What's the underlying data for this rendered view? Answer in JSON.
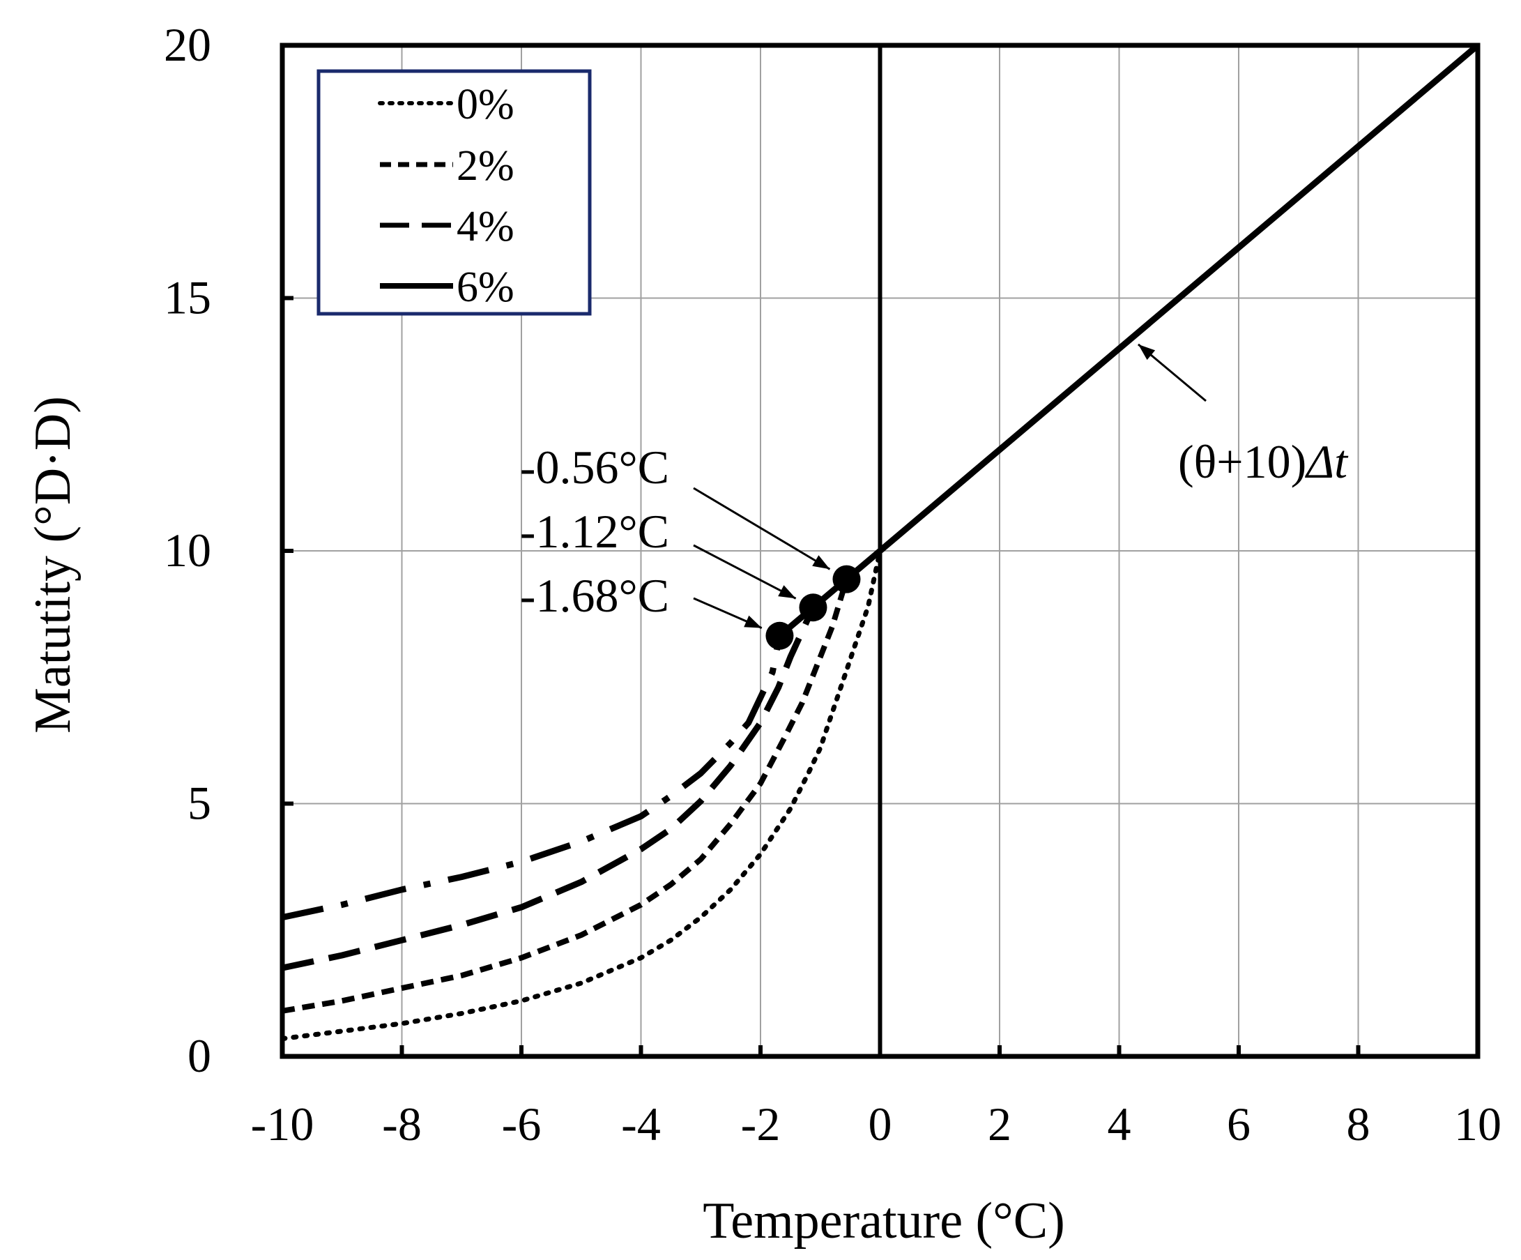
{
  "chart_data": {
    "type": "line",
    "title": "",
    "xlabel": "Temperature (°C)",
    "ylabel": "Matutity (°D·D)",
    "xlim": [
      -10,
      10
    ],
    "ylim": [
      0,
      20
    ],
    "xticks": [
      -10,
      -8,
      -6,
      -4,
      -2,
      0,
      2,
      4,
      6,
      8,
      10
    ],
    "xtick_labels": [
      "-10",
      "-8",
      "-6",
      "-4",
      "-2",
      "0",
      "2",
      "4",
      "6",
      "8",
      "10"
    ],
    "yticks": [
      0,
      5,
      10,
      15,
      20
    ],
    "ytick_labels": [
      "0",
      "5",
      "10",
      "15",
      "20"
    ],
    "grid": true,
    "legend_position": "top-left",
    "series": [
      {
        "name": "0%",
        "style": "dotted",
        "points": [
          [
            -10,
            0.35
          ],
          [
            -9,
            0.5
          ],
          [
            -8,
            0.65
          ],
          [
            -7,
            0.85
          ],
          [
            -6,
            1.1
          ],
          [
            -5,
            1.45
          ],
          [
            -4,
            1.95
          ],
          [
            -3.5,
            2.3
          ],
          [
            -3,
            2.75
          ],
          [
            -2.5,
            3.3
          ],
          [
            -2,
            4.0
          ],
          [
            -1.5,
            4.9
          ],
          [
            -1.2,
            5.6
          ],
          [
            -1.0,
            6.1
          ],
          [
            -0.8,
            6.8
          ],
          [
            -0.6,
            7.5
          ],
          [
            -0.4,
            8.2
          ],
          [
            -0.2,
            8.9
          ],
          [
            0,
            10
          ]
        ]
      },
      {
        "name": "2%",
        "style": "dashed",
        "points": [
          [
            -10,
            0.9
          ],
          [
            -9,
            1.1
          ],
          [
            -8,
            1.35
          ],
          [
            -7,
            1.6
          ],
          [
            -6,
            1.95
          ],
          [
            -5,
            2.4
          ],
          [
            -4,
            3.0
          ],
          [
            -3.5,
            3.4
          ],
          [
            -3,
            3.9
          ],
          [
            -2.5,
            4.6
          ],
          [
            -2,
            5.4
          ],
          [
            -1.6,
            6.3
          ],
          [
            -1.3,
            7.0
          ],
          [
            -1.1,
            7.6
          ],
          [
            -0.8,
            8.5
          ],
          [
            -0.56,
            9.44
          ]
        ]
      },
      {
        "name": "4%",
        "style": "long-dash",
        "points": [
          [
            -10,
            1.75
          ],
          [
            -9,
            2.0
          ],
          [
            -8,
            2.3
          ],
          [
            -7,
            2.6
          ],
          [
            -6,
            2.95
          ],
          [
            -5,
            3.45
          ],
          [
            -4,
            4.1
          ],
          [
            -3.5,
            4.5
          ],
          [
            -3,
            5.05
          ],
          [
            -2.5,
            5.75
          ],
          [
            -2,
            6.6
          ],
          [
            -1.7,
            7.3
          ],
          [
            -1.5,
            7.9
          ],
          [
            -1.12,
            8.88
          ]
        ]
      },
      {
        "name": "6%",
        "style": "dash-dot",
        "points": [
          [
            -10,
            2.75
          ],
          [
            -9,
            3.0
          ],
          [
            -8,
            3.3
          ],
          [
            -7,
            3.55
          ],
          [
            -6,
            3.85
          ],
          [
            -5,
            4.25
          ],
          [
            -4,
            4.75
          ],
          [
            -3.5,
            5.15
          ],
          [
            -3,
            5.6
          ],
          [
            -2.5,
            6.2
          ],
          [
            -2.2,
            6.6
          ],
          [
            -2,
            7.1
          ],
          [
            -1.8,
            7.6
          ],
          [
            -1.68,
            8.32
          ]
        ]
      },
      {
        "name": "(θ+10)Δt",
        "style": "solid",
        "points": [
          [
            -1.68,
            8.32
          ],
          [
            0,
            10
          ],
          [
            10,
            20
          ]
        ]
      }
    ],
    "markers": [
      {
        "x": -0.56,
        "y": 9.44,
        "label": "-0.56°C"
      },
      {
        "x": -1.12,
        "y": 8.88,
        "label": "-1.12°C"
      },
      {
        "x": -1.68,
        "y": 8.32,
        "label": "-1.68°C"
      }
    ],
    "line_annotation": {
      "text_main": "(θ+10)",
      "text_italic": "Δt"
    },
    "legend": [
      "0%",
      "2%",
      "4%",
      "6%"
    ]
  }
}
